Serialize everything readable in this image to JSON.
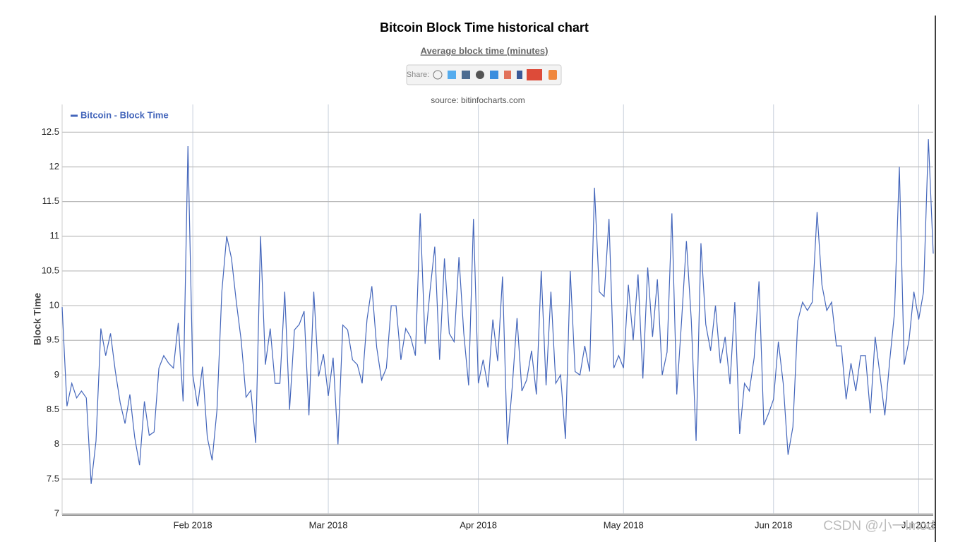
{
  "chart_data": {
    "type": "line",
    "title": "Bitcoin Block Time historical chart",
    "subtitle": "Average block time (minutes)",
    "share_label": "Share:",
    "source": "source: bitinfocharts.com",
    "y_label": "Block Time",
    "watermark": "CSDN @小一lmod",
    "categories": [
      null,
      null,
      null,
      null,
      null,
      null,
      null,
      null,
      null,
      null,
      null,
      null,
      null,
      null,
      null,
      null,
      null,
      null,
      null,
      null,
      null,
      null,
      null,
      null,
      null,
      null,
      null,
      "Feb 2018",
      null,
      null,
      null,
      null,
      null,
      null,
      null,
      null,
      null,
      null,
      null,
      null,
      null,
      null,
      null,
      null,
      null,
      null,
      null,
      null,
      null,
      null,
      null,
      null,
      null,
      null,
      null,
      "Mar 2018",
      null,
      null,
      null,
      null,
      null,
      null,
      null,
      null,
      null,
      null,
      null,
      null,
      null,
      null,
      null,
      null,
      null,
      null,
      null,
      null,
      null,
      null,
      null,
      null,
      null,
      null,
      null,
      null,
      null,
      null,
      "Apr 2018",
      null,
      null,
      null,
      null,
      null,
      null,
      null,
      null,
      null,
      null,
      null,
      null,
      null,
      null,
      null,
      null,
      null,
      null,
      null,
      null,
      null,
      null,
      null,
      null,
      null,
      null,
      null,
      null,
      null,
      "May 2018",
      null,
      null,
      null,
      null,
      null,
      null,
      null,
      null,
      null,
      null,
      null,
      null,
      null,
      null,
      null,
      null,
      null,
      null,
      null,
      null,
      null,
      null,
      null,
      null,
      null,
      null,
      null,
      null,
      null,
      null,
      "Jun 2018",
      null,
      null,
      null,
      null,
      null,
      null,
      null,
      null,
      null,
      null,
      null,
      null,
      null,
      null,
      null,
      null,
      null,
      null,
      null,
      null,
      null,
      null,
      null,
      null,
      null,
      null,
      null,
      null,
      null,
      "Jul 2018",
      null,
      null,
      null
    ],
    "series": [
      {
        "name": "Bitcoin - Block Time",
        "color": "#4466bb",
        "values": [
          9.98,
          8.55,
          8.88,
          8.67,
          8.77,
          8.67,
          7.43,
          8.05,
          9.67,
          9.28,
          9.6,
          9.05,
          8.6,
          8.3,
          8.72,
          8.1,
          7.7,
          8.62,
          8.13,
          8.18,
          9.1,
          9.28,
          9.17,
          9.1,
          9.75,
          8.62,
          12.3,
          9.0,
          8.55,
          9.12,
          8.1,
          7.77,
          8.5,
          10.2,
          11.0,
          10.68,
          10.05,
          9.5,
          8.68,
          8.78,
          8.02,
          11.0,
          9.15,
          9.67,
          8.88,
          8.88,
          10.2,
          8.5,
          9.65,
          9.73,
          9.92,
          8.42,
          10.2,
          8.98,
          9.3,
          8.7,
          9.25,
          8.0,
          9.72,
          9.65,
          9.22,
          9.15,
          8.88,
          9.8,
          10.28,
          9.4,
          8.93,
          9.1,
          10.0,
          10.0,
          9.22,
          9.67,
          9.55,
          9.28,
          11.33,
          9.45,
          10.2,
          10.85,
          9.22,
          10.68,
          9.6,
          9.48,
          10.7,
          9.6,
          8.85,
          11.25,
          8.88,
          9.22,
          8.82,
          9.8,
          9.2,
          10.42,
          8.0,
          8.82,
          9.82,
          8.77,
          8.93,
          9.35,
          8.72,
          10.5,
          8.85,
          10.2,
          8.88,
          9.0,
          8.08,
          10.5,
          9.05,
          9.0,
          9.42,
          9.05,
          11.7,
          10.2,
          10.13,
          11.25,
          9.1,
          9.28,
          9.1,
          10.3,
          9.5,
          10.45,
          8.95,
          10.55,
          9.55,
          10.38,
          9.0,
          9.33,
          11.33,
          8.72,
          9.78,
          10.93,
          9.8,
          8.05,
          10.9,
          9.73,
          9.35,
          10.0,
          9.17,
          9.55,
          8.87,
          10.05,
          8.15,
          8.88,
          8.77,
          9.25,
          10.35,
          8.28,
          8.45,
          8.65,
          9.48,
          8.88,
          7.85,
          8.25,
          9.78,
          10.05,
          9.93,
          10.05,
          11.35,
          10.3,
          9.93,
          10.05,
          9.42,
          9.42,
          8.65,
          9.17,
          8.77,
          9.28,
          9.28,
          8.45,
          9.55,
          9.0,
          8.42,
          9.2,
          9.9,
          12.0,
          9.15,
          9.5,
          10.2,
          9.8,
          10.2,
          12.4,
          10.75
        ]
      }
    ],
    "ylim": [
      7,
      12.9
    ],
    "yticks": [
      7,
      7.5,
      8,
      8.5,
      9,
      9.5,
      10,
      10.5,
      11,
      11.5,
      12,
      12.5
    ],
    "grid": true,
    "legend": "top-left"
  }
}
